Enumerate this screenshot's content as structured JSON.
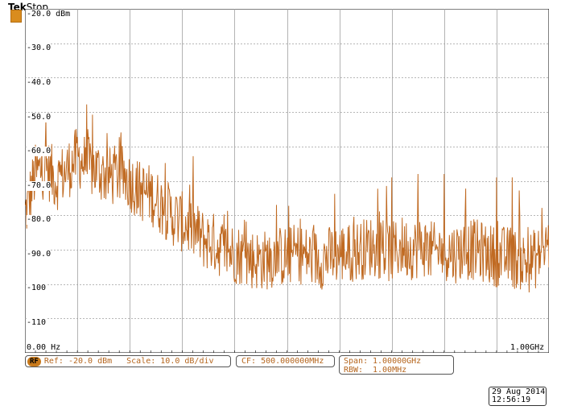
{
  "header": {
    "brand": "Tek",
    "status": "Stop"
  },
  "display": {
    "ref_level_label": "-20.0 dBm",
    "y_tick_labels": [
      "-30.0",
      "-40.0",
      "-50.0",
      "-60.0",
      "-70.0",
      "-80.0",
      "-90.0",
      "-100",
      "-110"
    ],
    "x_start_label": "0.00 Hz",
    "x_stop_label": "1.00GHz",
    "trace_color": "#c06a22",
    "grid_color": "#a0a0a0"
  },
  "readouts": {
    "rf_badge": "RF",
    "ref": "Ref: -20.0 dBm",
    "scale": "Scale: 10.0 dB/div",
    "cf": "CF: 500.000000MHz",
    "span_key": "Span:",
    "span_value": "1.00000GHz",
    "rbw_key": "RBW:",
    "rbw_value": "1.00MHz"
  },
  "datetime": {
    "date": "29 Aug 2014",
    "time": "12:56:19"
  },
  "chart_data": {
    "type": "line",
    "x_unit": "GHz",
    "y_unit": "dBm",
    "xlim": [
      0,
      1.0
    ],
    "ylim": [
      -120,
      -20
    ],
    "grid": true,
    "series": [
      {
        "x": [
          0.0,
          0.02,
          0.04,
          0.06,
          0.08,
          0.1,
          0.12,
          0.14,
          0.16,
          0.18,
          0.2,
          0.22,
          0.24,
          0.26,
          0.28,
          0.3,
          0.32,
          0.34,
          0.36,
          0.38,
          0.4,
          0.42,
          0.44,
          0.46,
          0.48,
          0.5,
          0.52,
          0.54,
          0.56,
          0.58,
          0.6,
          0.62,
          0.64,
          0.66,
          0.68,
          0.7,
          0.72,
          0.74,
          0.76,
          0.78,
          0.8,
          0.82,
          0.84,
          0.86,
          0.88,
          0.9,
          0.92,
          0.94,
          0.96,
          0.98,
          1.0
        ],
        "values": [
          -80,
          -68,
          -66,
          -70,
          -67,
          -63,
          -66,
          -67,
          -69,
          -68,
          -70,
          -73,
          -74,
          -77,
          -80,
          -82,
          -84,
          -87,
          -88,
          -90,
          -91,
          -92,
          -93,
          -93,
          -92,
          -92,
          -91,
          -92,
          -93,
          -92,
          -91,
          -91,
          -90,
          -89,
          -90,
          -91,
          -89,
          -90,
          -89,
          -91,
          -90,
          -91,
          -90,
          -90,
          -91,
          -92,
          -92,
          -93,
          -94,
          -92,
          -88
        ]
      }
    ],
    "spikes": [
      {
        "x": 0.12,
        "y": -55
      },
      {
        "x": 0.48,
        "y": -77
      },
      {
        "x": 0.7,
        "y": -69
      },
      {
        "x": 0.75,
        "y": -68
      },
      {
        "x": 0.8,
        "y": -68
      },
      {
        "x": 0.9,
        "y": -69
      },
      {
        "x": 0.93,
        "y": -69
      }
    ]
  }
}
